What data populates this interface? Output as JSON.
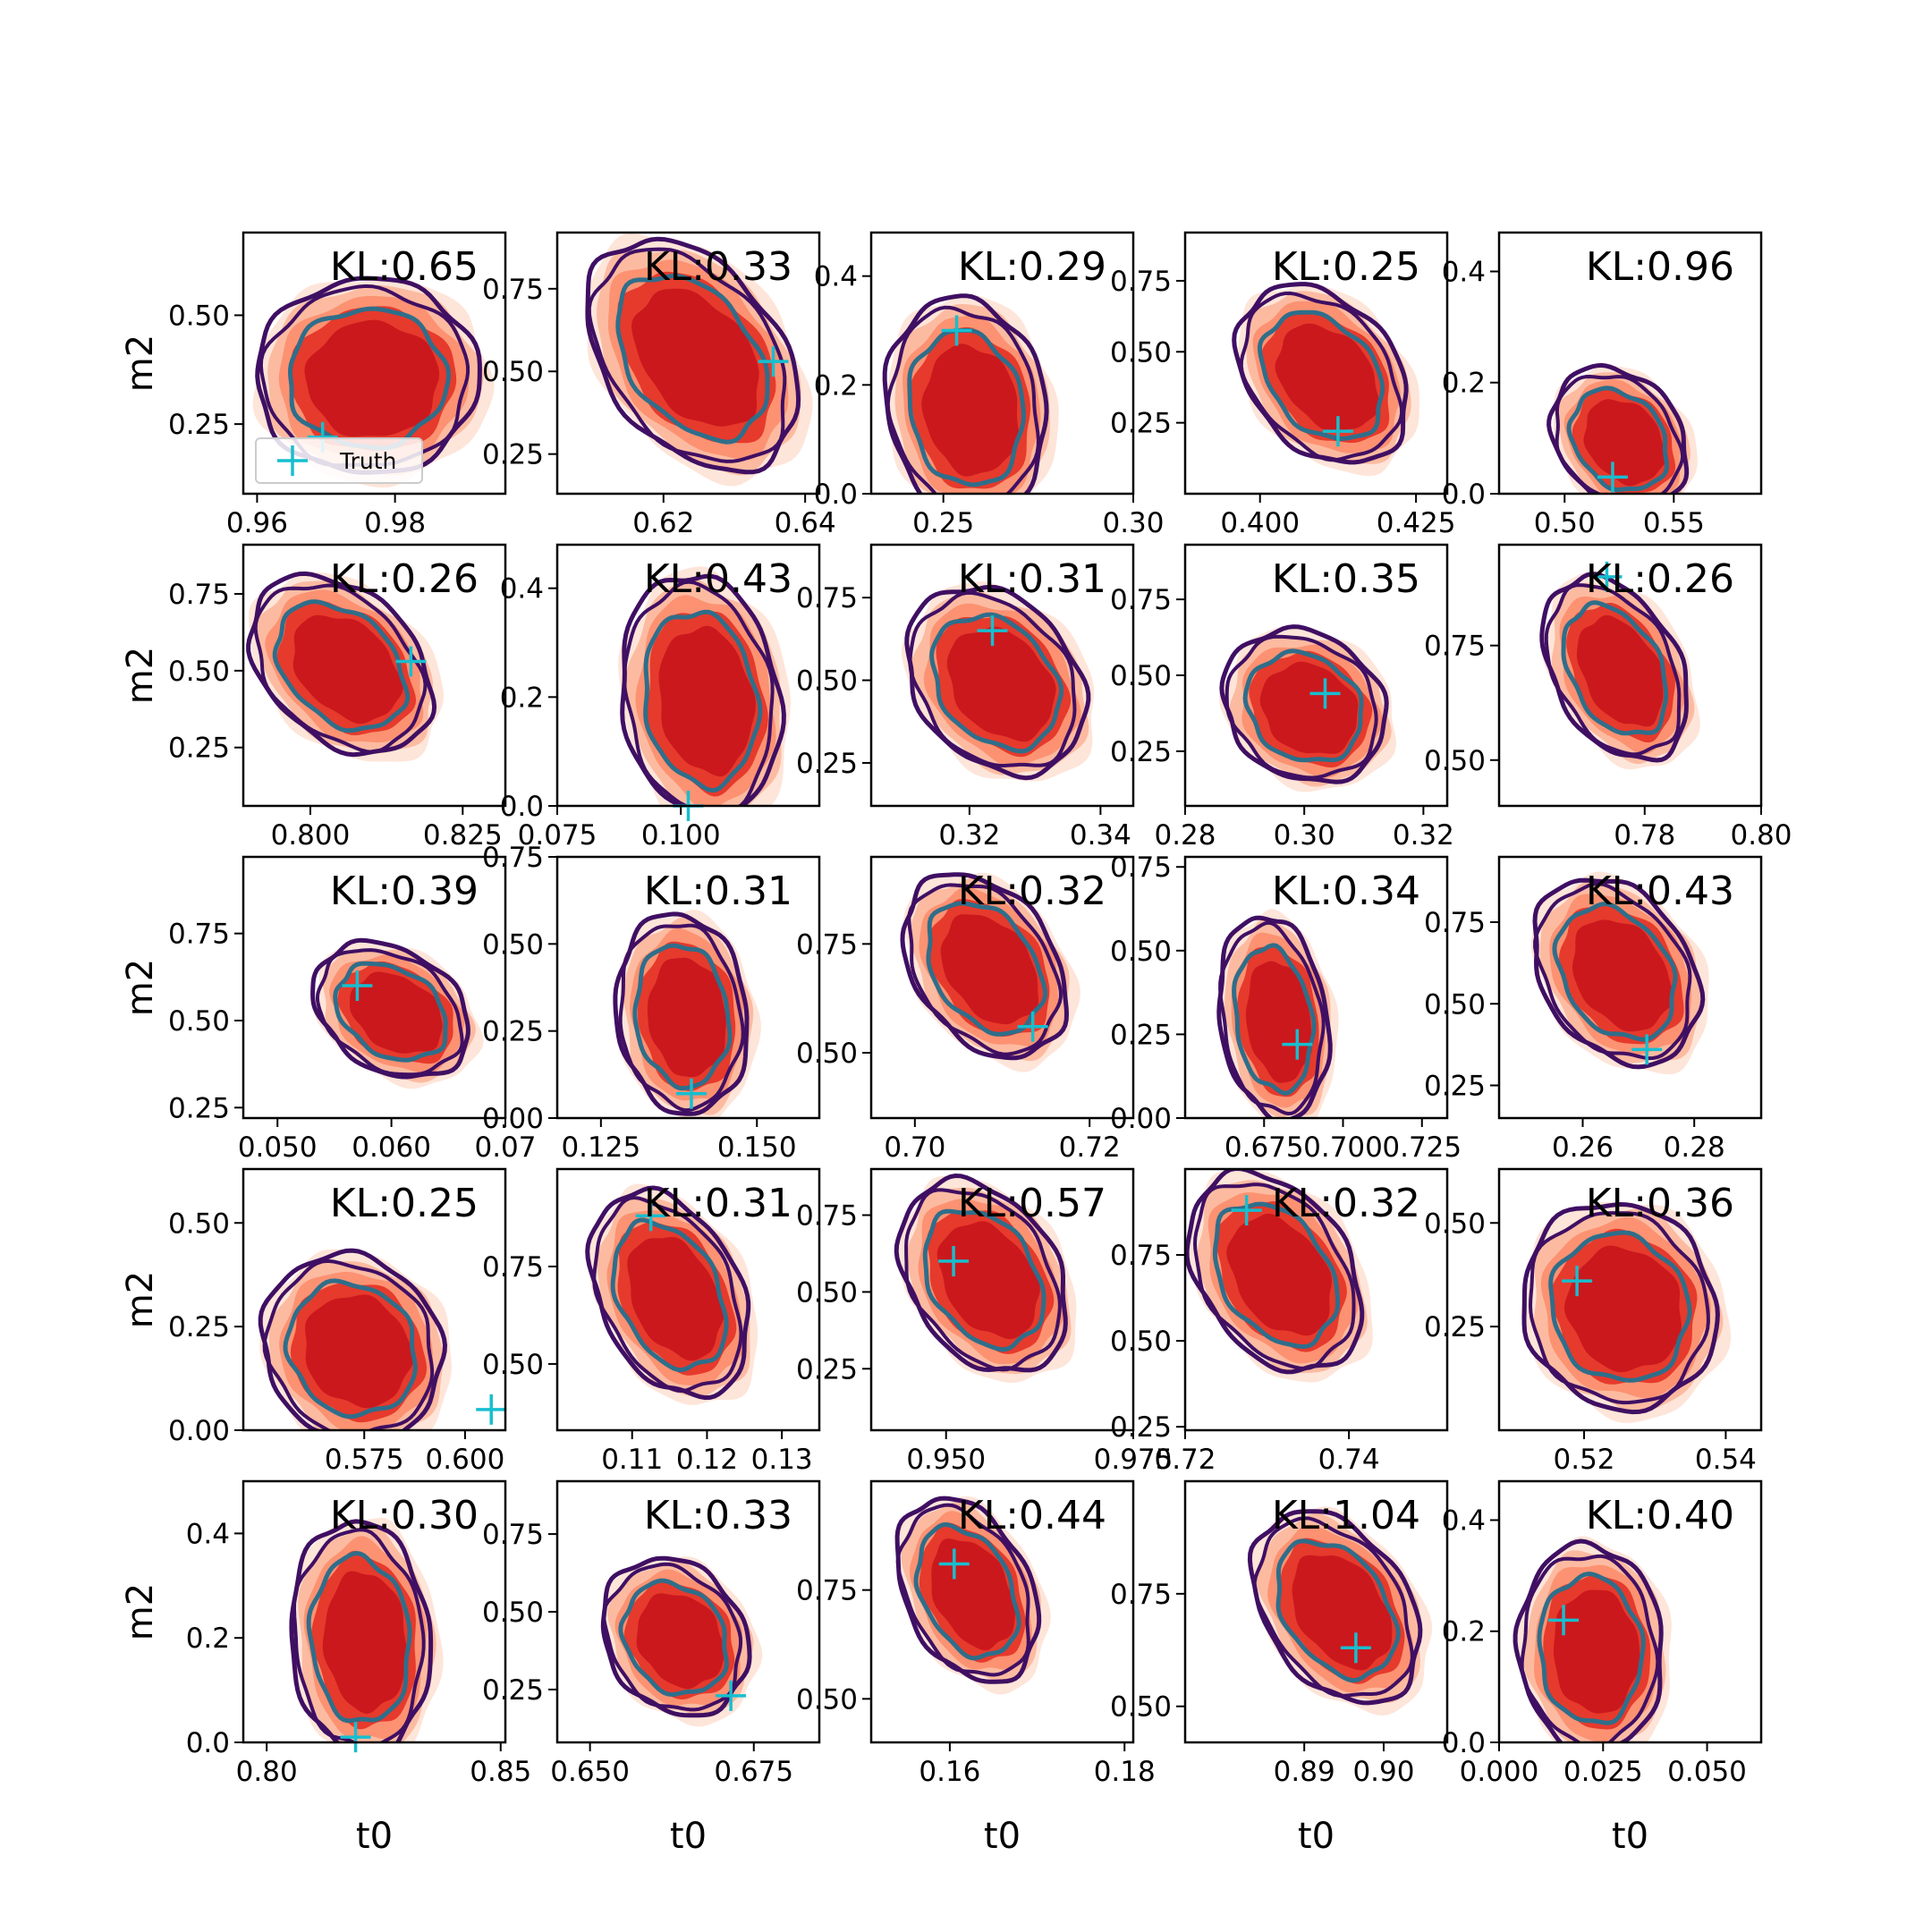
{
  "figure": {
    "legend_label": "Truth"
  },
  "style": {
    "fill_levels": [
      "#fee5d9",
      "#fcbba1",
      "#fc9272",
      "#e63a2c",
      "#cb181d"
    ],
    "outer_contour": "#3f0f63",
    "inner_contour": "#2f6e8a",
    "truth_marker": "#17becf"
  },
  "chart_data": [
    {
      "type": "contour",
      "title": "KL:0.65",
      "xlabel": "",
      "ylabel": "m2",
      "xlim": [
        0.958,
        0.996
      ],
      "ylim": [
        0.09,
        0.69
      ],
      "xticks": [
        0.96,
        0.98
      ],
      "xticklabels": [
        "0.96",
        "0.98"
      ],
      "yticks": [
        0.25,
        0.5
      ],
      "yticklabels": [
        "0.25",
        "0.50"
      ],
      "center": [
        0.976,
        0.36
      ],
      "spread": [
        0.013,
        0.18
      ],
      "tilt": 0.0,
      "truth": [
        0.9695,
        0.22
      ],
      "legend": true
    },
    {
      "type": "contour",
      "title": "KL:0.33",
      "xlabel": "",
      "ylabel": "",
      "xlim": [
        0.605,
        0.642
      ],
      "ylim": [
        0.13,
        0.92
      ],
      "xticks": [
        0.62,
        0.64
      ],
      "xticklabels": [
        "0.62",
        "0.64"
      ],
      "yticks": [
        0.25,
        0.5,
        0.75
      ],
      "yticklabels": [
        "0.25",
        "0.50",
        "0.75"
      ],
      "center": [
        0.624,
        0.55
      ],
      "spread": [
        0.012,
        0.26
      ],
      "tilt": -0.75,
      "truth": [
        0.6355,
        0.53
      ]
    },
    {
      "type": "contour",
      "title": "KL:0.29",
      "xlabel": "",
      "ylabel": "",
      "xlim": [
        0.231,
        0.3
      ],
      "ylim": [
        0.0,
        0.48
      ],
      "xticks": [
        0.25,
        0.3
      ],
      "xticklabels": [
        "0.25",
        "0.30"
      ],
      "yticks": [
        0.0,
        0.2,
        0.4
      ],
      "yticklabels": [
        "0.0",
        "0.2",
        "0.4"
      ],
      "center": [
        0.256,
        0.16
      ],
      "spread": [
        0.017,
        0.16
      ],
      "tilt": -0.2,
      "truth": [
        0.2535,
        0.3
      ]
    },
    {
      "type": "contour",
      "title": "KL:0.25",
      "xlabel": "",
      "ylabel": "",
      "xlim": [
        0.388,
        0.43
      ],
      "ylim": [
        0.0,
        0.92
      ],
      "xticks": [
        0.4,
        0.425
      ],
      "xticklabels": [
        "0.400",
        "0.425"
      ],
      "yticks": [
        0.25,
        0.5,
        0.75
      ],
      "yticklabels": [
        "0.25",
        "0.50",
        "0.75"
      ],
      "center": [
        0.41,
        0.42
      ],
      "spread": [
        0.011,
        0.24
      ],
      "tilt": -0.6,
      "truth": [
        0.4125,
        0.22
      ]
    },
    {
      "type": "contour",
      "title": "KL:0.96",
      "xlabel": "",
      "ylabel": "",
      "xlim": [
        0.47,
        0.59
      ],
      "ylim": [
        0.0,
        0.47
      ],
      "xticks": [
        0.5,
        0.55
      ],
      "xticklabels": [
        "0.50",
        "0.55"
      ],
      "yticks": [
        0.0,
        0.2,
        0.4
      ],
      "yticklabels": [
        "0.0",
        "0.2",
        "0.4"
      ],
      "center": [
        0.525,
        0.1
      ],
      "spread": [
        0.025,
        0.1
      ],
      "tilt": -0.45,
      "truth": [
        0.522,
        0.03
      ]
    },
    {
      "type": "contour",
      "title": "KL:0.26",
      "xlabel": "",
      "ylabel": "m2",
      "xlim": [
        0.789,
        0.832
      ],
      "ylim": [
        0.06,
        0.91
      ],
      "xticks": [
        0.8,
        0.825
      ],
      "xticklabels": [
        "0.800",
        "0.825"
      ],
      "yticks": [
        0.25,
        0.5,
        0.75
      ],
      "yticklabels": [
        "0.25",
        "0.50",
        "0.75"
      ],
      "center": [
        0.805,
        0.52
      ],
      "spread": [
        0.012,
        0.22
      ],
      "tilt": -0.65,
      "truth": [
        0.8165,
        0.53
      ]
    },
    {
      "type": "contour",
      "title": "KL:0.43",
      "xlabel": "",
      "ylabel": "",
      "xlim": [
        0.075,
        0.128
      ],
      "ylim": [
        0.0,
        0.48
      ],
      "xticks": [
        0.075,
        0.1
      ],
      "xticklabels": [
        "0.075",
        "0.100"
      ],
      "yticks": [
        0.0,
        0.2,
        0.4
      ],
      "yticklabels": [
        "0.0",
        "0.2",
        "0.4"
      ],
      "center": [
        0.104,
        0.2
      ],
      "spread": [
        0.013,
        0.18
      ],
      "tilt": -0.25,
      "truth": [
        0.1015,
        0.0
      ]
    },
    {
      "type": "contour",
      "title": "KL:0.31",
      "xlabel": "",
      "ylabel": "",
      "xlim": [
        0.305,
        0.345
      ],
      "ylim": [
        0.12,
        0.91
      ],
      "xticks": [
        0.32,
        0.34
      ],
      "xticklabels": [
        "0.32",
        "0.34"
      ],
      "yticks": [
        0.25,
        0.5,
        0.75
      ],
      "yticklabels": [
        "0.25",
        "0.50",
        "0.75"
      ],
      "center": [
        0.324,
        0.5
      ],
      "spread": [
        0.011,
        0.22
      ],
      "tilt": -0.5,
      "truth": [
        0.3235,
        0.65
      ]
    },
    {
      "type": "contour",
      "title": "KL:0.35",
      "xlabel": "",
      "ylabel": "",
      "xlim": [
        0.28,
        0.324
      ],
      "ylim": [
        0.07,
        0.93
      ],
      "xticks": [
        0.28,
        0.3,
        0.32
      ],
      "xticklabels": [
        "0.28",
        "0.30",
        "0.32"
      ],
      "yticks": [
        0.25,
        0.5,
        0.75
      ],
      "yticklabels": [
        "0.25",
        "0.50",
        "0.75"
      ],
      "center": [
        0.3,
        0.4
      ],
      "spread": [
        0.011,
        0.2
      ],
      "tilt": -0.3,
      "truth": [
        0.3035,
        0.44
      ]
    },
    {
      "type": "contour",
      "title": "KL:0.26",
      "xlabel": "",
      "ylabel": "",
      "xlim": [
        0.755,
        0.8
      ],
      "ylim": [
        0.4,
        0.97
      ],
      "xticks": [
        0.78,
        0.8
      ],
      "xticklabels": [
        "0.78",
        "0.80"
      ],
      "yticks": [
        0.5,
        0.75
      ],
      "yticklabels": [
        "0.50",
        "0.75"
      ],
      "center": [
        0.775,
        0.7
      ],
      "spread": [
        0.01,
        0.15
      ],
      "tilt": -0.7,
      "truth": [
        0.7735,
        0.9
      ]
    },
    {
      "type": "contour",
      "title": "KL:0.39",
      "xlabel": "",
      "ylabel": "m2",
      "xlim": [
        0.047,
        0.07
      ],
      "ylim": [
        0.22,
        0.97
      ],
      "xticks": [
        0.05,
        0.06,
        0.07
      ],
      "xticklabels": [
        "0.050",
        "0.060",
        "0.07"
      ],
      "yticks": [
        0.25,
        0.5,
        0.75
      ],
      "yticklabels": [
        "0.25",
        "0.50",
        "0.75"
      ],
      "center": [
        0.06,
        0.53
      ],
      "spread": [
        0.0055,
        0.15
      ],
      "tilt": -0.55,
      "truth": [
        0.057,
        0.6
      ]
    },
    {
      "type": "contour",
      "title": "KL:0.31",
      "xlabel": "",
      "ylabel": "",
      "xlim": [
        0.118,
        0.16
      ],
      "ylim": [
        0.0,
        0.75
      ],
      "xticks": [
        0.125,
        0.15
      ],
      "xticklabels": [
        "0.125",
        "0.150"
      ],
      "yticks": [
        0.0,
        0.25,
        0.5,
        0.75
      ],
      "yticklabels": [
        "0.00",
        "0.25",
        "0.50",
        "0.75"
      ],
      "center": [
        0.138,
        0.3
      ],
      "spread": [
        0.0085,
        0.23
      ],
      "tilt": -0.2,
      "truth": [
        0.1395,
        0.07
      ]
    },
    {
      "type": "contour",
      "title": "KL:0.32",
      "xlabel": "",
      "ylabel": "",
      "xlim": [
        0.695,
        0.725
      ],
      "ylim": [
        0.35,
        0.95
      ],
      "xticks": [
        0.7,
        0.72
      ],
      "xticklabels": [
        "0.70",
        "0.72"
      ],
      "yticks": [
        0.5,
        0.75
      ],
      "yticklabels": [
        "0.50",
        "0.75"
      ],
      "center": [
        0.708,
        0.7
      ],
      "spread": [
        0.0075,
        0.16
      ],
      "tilt": -0.65,
      "truth": [
        0.7135,
        0.56
      ]
    },
    {
      "type": "contour",
      "title": "KL:0.34",
      "xlabel": "",
      "ylabel": "",
      "xlim": [
        0.65,
        0.733
      ],
      "ylim": [
        0.0,
        0.78
      ],
      "xticks": [
        0.675,
        0.7,
        0.725
      ],
      "xticklabels": [
        "0.675",
        "0.700",
        "0.725"
      ],
      "yticks": [
        0.0,
        0.25,
        0.5,
        0.75
      ],
      "yticklabels": [
        "0.00",
        "0.25",
        "0.50",
        "0.75"
      ],
      "center": [
        0.678,
        0.3
      ],
      "spread": [
        0.014,
        0.24
      ],
      "tilt": -0.35,
      "truth": [
        0.6855,
        0.22
      ]
    },
    {
      "type": "contour",
      "title": "KL:0.43",
      "xlabel": "",
      "ylabel": "",
      "xlim": [
        0.245,
        0.292
      ],
      "ylim": [
        0.15,
        0.95
      ],
      "xticks": [
        0.26,
        0.28
      ],
      "xticklabels": [
        "0.26",
        "0.28"
      ],
      "yticks": [
        0.25,
        0.5,
        0.75
      ],
      "yticklabels": [
        "0.25",
        "0.50",
        "0.75"
      ],
      "center": [
        0.266,
        0.6
      ],
      "spread": [
        0.012,
        0.22
      ],
      "tilt": -0.55,
      "truth": [
        0.2715,
        0.36
      ]
    },
    {
      "type": "contour",
      "title": "KL:0.25",
      "xlabel": "",
      "ylabel": "m2",
      "xlim": [
        0.545,
        0.61
      ],
      "ylim": [
        0.0,
        0.63
      ],
      "xticks": [
        0.575,
        0.6
      ],
      "xticklabels": [
        "0.575",
        "0.600"
      ],
      "yticks": [
        0.0,
        0.25,
        0.5
      ],
      "yticklabels": [
        "0.00",
        "0.25",
        "0.50"
      ],
      "center": [
        0.572,
        0.2
      ],
      "spread": [
        0.018,
        0.18
      ],
      "tilt": -0.2,
      "truth": [
        0.6065,
        0.05
      ]
    },
    {
      "type": "contour",
      "title": "KL:0.31",
      "xlabel": "",
      "ylabel": "",
      "xlim": [
        0.1,
        0.135
      ],
      "ylim": [
        0.33,
        1.0
      ],
      "xticks": [
        0.11,
        0.12,
        0.13
      ],
      "xticklabels": [
        "0.11",
        "0.12",
        "0.13"
      ],
      "yticks": [
        0.5,
        0.75
      ],
      "yticklabels": [
        "0.50",
        "0.75"
      ],
      "center": [
        0.115,
        0.68
      ],
      "spread": [
        0.0085,
        0.2
      ],
      "tilt": -0.65,
      "truth": [
        0.1125,
        0.88
      ]
    },
    {
      "type": "contour",
      "title": "KL:0.57",
      "xlabel": "",
      "ylabel": "",
      "xlim": [
        0.94,
        0.975
      ],
      "ylim": [
        0.05,
        0.9
      ],
      "xticks": [
        0.95,
        0.975
      ],
      "xticklabels": [
        "0.950",
        "0.975"
      ],
      "yticks": [
        0.25,
        0.5,
        0.75
      ],
      "yticklabels": [
        "0.25",
        "0.50",
        "0.75"
      ],
      "center": [
        0.955,
        0.55
      ],
      "spread": [
        0.009,
        0.24
      ],
      "tilt": -0.6,
      "truth": [
        0.951,
        0.6
      ]
    },
    {
      "type": "contour",
      "title": "KL:0.32",
      "xlabel": "",
      "ylabel": "",
      "xlim": [
        0.72,
        0.752
      ],
      "ylim": [
        0.24,
        1.0
      ],
      "xticks": [
        0.72,
        0.74
      ],
      "xticklabels": [
        "0.72",
        "0.74"
      ],
      "yticks": [
        0.25,
        0.5,
        0.75
      ],
      "yticklabels": [
        "0.25",
        "0.50",
        "0.75"
      ],
      "center": [
        0.731,
        0.7
      ],
      "spread": [
        0.0085,
        0.22
      ],
      "tilt": -0.65,
      "truth": [
        0.7275,
        0.88
      ]
    },
    {
      "type": "contour",
      "title": "KL:0.36",
      "xlabel": "",
      "ylabel": "",
      "xlim": [
        0.508,
        0.545
      ],
      "ylim": [
        0.0,
        0.63
      ],
      "xticks": [
        0.52,
        0.54
      ],
      "xticklabels": [
        "0.52",
        "0.54"
      ],
      "yticks": [
        0.25,
        0.5
      ],
      "yticklabels": [
        "0.25",
        "0.50"
      ],
      "center": [
        0.525,
        0.3
      ],
      "spread": [
        0.011,
        0.2
      ],
      "tilt": -0.15,
      "truth": [
        0.519,
        0.36
      ]
    },
    {
      "type": "contour",
      "title": "KL:0.30",
      "xlabel": "t0",
      "ylabel": "m2",
      "xlim": [
        0.795,
        0.851
      ],
      "ylim": [
        0.0,
        0.5
      ],
      "xticks": [
        0.8,
        0.85
      ],
      "xticklabels": [
        "0.80",
        "0.85"
      ],
      "yticks": [
        0.0,
        0.2,
        0.4
      ],
      "yticklabels": [
        "0.0",
        "0.2",
        "0.4"
      ],
      "center": [
        0.82,
        0.2
      ],
      "spread": [
        0.012,
        0.18
      ],
      "tilt": -0.15,
      "truth": [
        0.819,
        0.01
      ]
    },
    {
      "type": "contour",
      "title": "KL:0.33",
      "xlabel": "t0",
      "ylabel": "",
      "xlim": [
        0.645,
        0.685
      ],
      "ylim": [
        0.08,
        0.92
      ],
      "xticks": [
        0.65,
        0.675
      ],
      "xticklabels": [
        "0.650",
        "0.675"
      ],
      "yticks": [
        0.25,
        0.5,
        0.75
      ],
      "yticklabels": [
        "0.25",
        "0.50",
        "0.75"
      ],
      "center": [
        0.663,
        0.42
      ],
      "spread": [
        0.009,
        0.2
      ],
      "tilt": -0.35,
      "truth": [
        0.6715,
        0.23
      ]
    },
    {
      "type": "contour",
      "title": "KL:0.44",
      "xlabel": "t0",
      "ylabel": "",
      "xlim": [
        0.151,
        0.181
      ],
      "ylim": [
        0.4,
        1.0
      ],
      "xticks": [
        0.16,
        0.18
      ],
      "xticklabels": [
        "0.16",
        "0.18"
      ],
      "yticks": [
        0.5,
        0.75
      ],
      "yticklabels": [
        "0.50",
        "0.75"
      ],
      "center": [
        0.162,
        0.75
      ],
      "spread": [
        0.0065,
        0.16
      ],
      "tilt": -0.65,
      "truth": [
        0.1605,
        0.81
      ]
    },
    {
      "type": "contour",
      "title": "KL:1.04",
      "xlabel": "t0",
      "ylabel": "",
      "xlim": [
        0.875,
        0.908
      ],
      "ylim": [
        0.42,
        1.0
      ],
      "xticks": [
        0.89,
        0.9
      ],
      "xticklabels": [
        "0.89",
        "0.90"
      ],
      "yticks": [
        0.5,
        0.75
      ],
      "yticklabels": [
        "0.50",
        "0.75"
      ],
      "center": [
        0.894,
        0.72
      ],
      "spread": [
        0.0085,
        0.16
      ],
      "tilt": -0.7,
      "truth": [
        0.8965,
        0.63
      ]
    },
    {
      "type": "contour",
      "title": "KL:0.40",
      "xlabel": "t0",
      "ylabel": "",
      "xlim": [
        0.0,
        0.063
      ],
      "ylim": [
        0.0,
        0.47
      ],
      "xticks": [
        0.0,
        0.025,
        0.05
      ],
      "xticklabels": [
        "0.000",
        "0.025",
        "0.050"
      ],
      "yticks": [
        0.0,
        0.2,
        0.4
      ],
      "yticklabels": [
        "0.0",
        "0.2",
        "0.4"
      ],
      "center": [
        0.022,
        0.17
      ],
      "spread": [
        0.014,
        0.15
      ],
      "tilt": -0.1,
      "truth": [
        0.0155,
        0.22
      ]
    }
  ]
}
